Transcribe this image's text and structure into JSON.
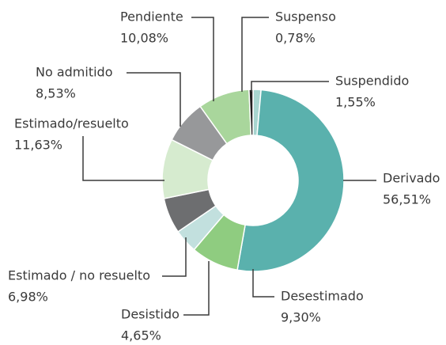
{
  "chart_data": {
    "type": "donut",
    "categories": [
      "Suspendido",
      "Derivado",
      "Desestimado",
      "Desistido",
      "Estimado / no resuelto",
      "Estimado/resuelto",
      "No admitido",
      "Pendiente",
      "Suspenso"
    ],
    "values": [
      1.55,
      56.51,
      9.3,
      4.65,
      6.98,
      11.63,
      8.53,
      10.08,
      0.78
    ],
    "value_labels": [
      "1,55%",
      "56,51%",
      "9,30%",
      "4,65%",
      "6,98%",
      "11,63%",
      "8,53%",
      "10,08%",
      "0,78%"
    ],
    "colors": [
      "#a8d5d0",
      "#5ab1ad",
      "#8fcc80",
      "#c2e0de",
      "#6d6e70",
      "#d6ebcf",
      "#97989a",
      "#a9d69c",
      "#231f20"
    ]
  }
}
